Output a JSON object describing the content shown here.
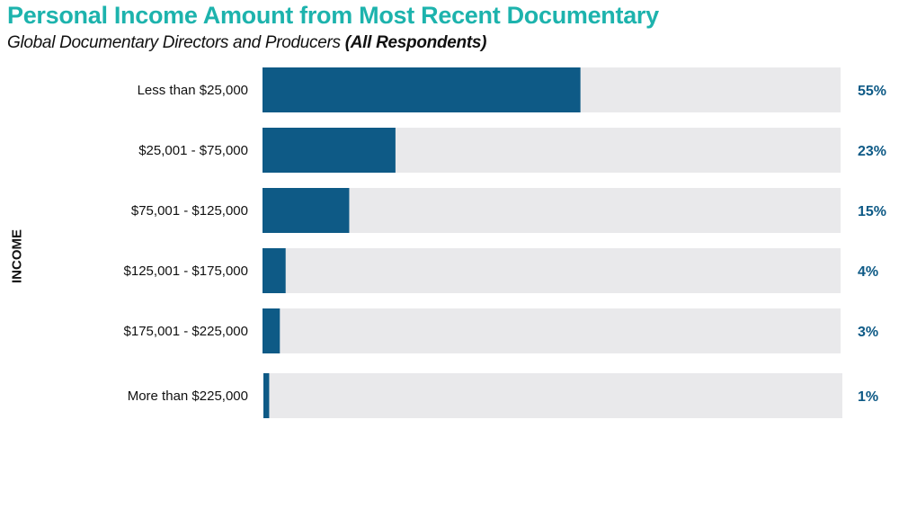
{
  "chart_data": {
    "type": "bar",
    "orientation": "horizontal",
    "title": "Personal Income Amount from Most Recent Documentary",
    "subtitle": "Global Documentary Directors and Producers",
    "subtitle_bold": "(All Respondents)",
    "ylabel": "INCOME",
    "xlabel": "",
    "xlim": [
      0,
      100
    ],
    "categories": [
      "Less than $25,000",
      "$25,001 - $75,000",
      "$75,001 - $125,000",
      "$125,001 - $175,000",
      "$175,001 - $225,000",
      "More than $225,000"
    ],
    "values": [
      55,
      23,
      15,
      4,
      3,
      1
    ],
    "value_labels": [
      "55%",
      "23%",
      "15%",
      "4%",
      "3%",
      "1%"
    ],
    "grid": false,
    "colors": {
      "bar": "#0e5a86",
      "track": "#e9e9eb",
      "title": "#1db3ad",
      "value_label": "#0e5a86"
    }
  }
}
